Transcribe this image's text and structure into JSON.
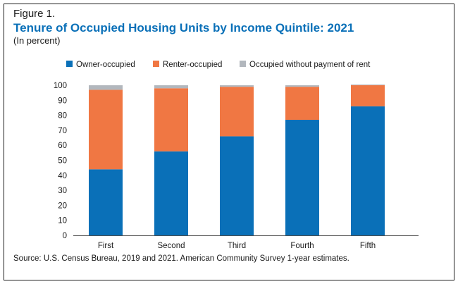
{
  "figure_label": "Figure 1.",
  "source": "Source: U.S. Census Bureau, 2019 and 2021. American Community Survey 1-year estimates.",
  "colors": {
    "owner": "#0a70b8",
    "renter": "#f07743",
    "without_payment": "#b2b7bd",
    "title": "#0a70b8"
  },
  "chart_data": {
    "type": "bar",
    "stacked": true,
    "title": "Tenure of Occupied Housing Units by Income Quintile: 2021",
    "subtitle": "(In percent)",
    "xlabel": "",
    "ylabel": "",
    "ylim": [
      0,
      100
    ],
    "yticks": [
      0,
      10,
      20,
      30,
      40,
      50,
      60,
      70,
      80,
      90,
      100
    ],
    "grid": false,
    "legend_position": "top",
    "categories": [
      "First",
      "Second",
      "Third",
      "Fourth",
      "Fifth"
    ],
    "series": [
      {
        "name": "Owner-occupied",
        "values": [
          44,
          56,
          66,
          77,
          86
        ]
      },
      {
        "name": "Renter-occupied",
        "values": [
          53,
          42,
          33,
          22,
          14
        ]
      },
      {
        "name": "Occupied without payment of rent",
        "values": [
          3,
          2,
          1,
          1,
          0.5
        ]
      }
    ]
  }
}
